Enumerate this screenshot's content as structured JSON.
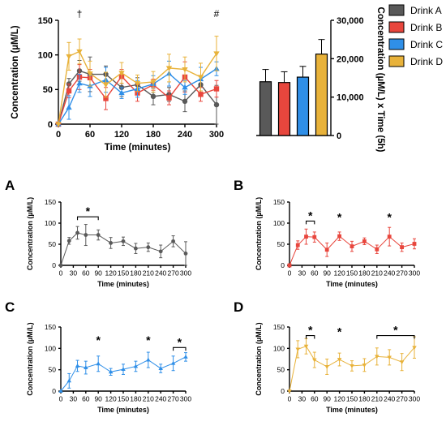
{
  "chart_data": [
    {
      "id": "top",
      "type": "line",
      "ylabel": "Concentration (µM/L)",
      "xlabel": "Time (minutes)",
      "xlim": [
        0,
        300
      ],
      "ylim": [
        0,
        150
      ],
      "xticks": [
        0,
        60,
        120,
        180,
        240,
        300
      ],
      "yticks": [
        0,
        50,
        100,
        150
      ],
      "x": [
        0,
        20,
        40,
        60,
        90,
        120,
        150,
        180,
        210,
        240,
        270,
        300
      ],
      "annotations": [
        {
          "text": "†",
          "x": 40
        },
        {
          "text": "#",
          "x": 300
        }
      ],
      "series": [
        {
          "name": "Drink A",
          "color": "#595959",
          "marker": "circle",
          "values": [
            0,
            58,
            77,
            72,
            72,
            53,
            57,
            40,
            43,
            33,
            57,
            28
          ],
          "err": [
            0,
            8,
            15,
            25,
            12,
            13,
            10,
            12,
            10,
            15,
            13,
            28
          ]
        },
        {
          "name": "Drink B",
          "color": "#e8463d",
          "marker": "square",
          "values": [
            0,
            48,
            68,
            67,
            37,
            69,
            45,
            57,
            38,
            68,
            43,
            51
          ],
          "err": [
            0,
            10,
            18,
            12,
            16,
            10,
            12,
            8,
            10,
            22,
            10,
            12
          ]
        },
        {
          "name": "Drink C",
          "color": "#2f8fe8",
          "marker": "triangle",
          "values": [
            0,
            24,
            59,
            55,
            64,
            45,
            51,
            58,
            73,
            53,
            65,
            80
          ],
          "err": [
            0,
            17,
            13,
            15,
            18,
            8,
            12,
            12,
            18,
            10,
            17,
            10
          ]
        },
        {
          "name": "Drink D",
          "color": "#e8b23a",
          "marker": "triangle-down",
          "values": [
            0,
            98,
            105,
            73,
            57,
            74,
            59,
            61,
            81,
            79,
            68,
            102
          ],
          "err": [
            0,
            20,
            18,
            18,
            18,
            15,
            12,
            15,
            20,
            18,
            20,
            25
          ]
        }
      ]
    },
    {
      "id": "auc",
      "type": "bar",
      "ylabel": "Concentration (µM/L) x Time (5h)",
      "ylim": [
        0,
        30000
      ],
      "yticks": [
        0,
        10000,
        20000,
        30000
      ],
      "ytick_labels": [
        "0",
        "10,000",
        "20,000",
        "30,000"
      ],
      "categories": [
        "Drink A",
        "Drink B",
        "Drink C",
        "Drink D"
      ],
      "values": [
        14000,
        13800,
        15200,
        21200
      ],
      "err": [
        3200,
        2800,
        2800,
        3800
      ],
      "colors": [
        "#595959",
        "#e8463d",
        "#2f8fe8",
        "#e8b23a"
      ],
      "legend": {
        "placement": "top-left",
        "entries": [
          "Drink A",
          "Drink B",
          "Drink C",
          "Drink D"
        ],
        "colors": [
          "#595959",
          "#e8463d",
          "#2f8fe8",
          "#e8b23a"
        ]
      }
    },
    {
      "id": "A",
      "type": "line",
      "panel_label": "A",
      "ylabel": "Concentration (µM/L)",
      "xlabel": "Time (minutes)",
      "xlim": [
        0,
        300
      ],
      "ylim": [
        0,
        150
      ],
      "xticks": [
        0,
        30,
        60,
        90,
        120,
        150,
        180,
        210,
        240,
        270,
        300
      ],
      "yticks": [
        0,
        50,
        100,
        150
      ],
      "x": [
        0,
        20,
        40,
        60,
        90,
        120,
        150,
        180,
        210,
        240,
        270,
        300
      ],
      "series": [
        {
          "color": "#595959",
          "marker": "circle",
          "values": [
            0,
            58,
            77,
            72,
            72,
            53,
            57,
            40,
            43,
            33,
            57,
            28
          ],
          "err": [
            0,
            8,
            15,
            25,
            12,
            13,
            10,
            12,
            10,
            15,
            13,
            28
          ]
        }
      ],
      "significance": [
        {
          "text": "*",
          "x1": 40,
          "x2": 90,
          "y": 115
        }
      ]
    },
    {
      "id": "B",
      "type": "line",
      "panel_label": "B",
      "ylabel": "Concentration (µM/L)",
      "xlabel": "Time (minutes)",
      "xlim": [
        0,
        300
      ],
      "ylim": [
        0,
        150
      ],
      "xticks": [
        0,
        30,
        60,
        90,
        120,
        150,
        180,
        210,
        240,
        270,
        300
      ],
      "yticks": [
        0,
        50,
        100,
        150
      ],
      "x": [
        0,
        20,
        40,
        60,
        90,
        120,
        150,
        180,
        210,
        240,
        270,
        300
      ],
      "series": [
        {
          "color": "#e8463d",
          "marker": "square",
          "values": [
            0,
            48,
            68,
            67,
            37,
            69,
            45,
            57,
            38,
            68,
            43,
            51
          ],
          "err": [
            0,
            10,
            18,
            12,
            16,
            10,
            12,
            8,
            10,
            22,
            10,
            12
          ]
        }
      ],
      "significance": [
        {
          "text": "*",
          "x1": 40,
          "x2": 60,
          "y": 105
        },
        {
          "text": "*",
          "x": 120,
          "y": 105
        },
        {
          "text": "*",
          "x": 240,
          "y": 105
        }
      ]
    },
    {
      "id": "C",
      "type": "line",
      "panel_label": "C",
      "ylabel": "Concentration (µM/L)",
      "xlabel": "Time (minutes)",
      "xlim": [
        0,
        300
      ],
      "ylim": [
        0,
        150
      ],
      "xticks": [
        0,
        30,
        60,
        90,
        120,
        150,
        180,
        210,
        240,
        270,
        300
      ],
      "yticks": [
        0,
        50,
        100,
        150
      ],
      "x": [
        0,
        20,
        40,
        60,
        90,
        120,
        150,
        180,
        210,
        240,
        270,
        300
      ],
      "series": [
        {
          "color": "#2f8fe8",
          "marker": "triangle",
          "values": [
            0,
            24,
            59,
            55,
            64,
            45,
            51,
            58,
            73,
            53,
            65,
            80
          ],
          "err": [
            0,
            17,
            13,
            15,
            18,
            8,
            12,
            12,
            18,
            10,
            17,
            10
          ]
        }
      ],
      "significance": [
        {
          "text": "*",
          "x": 90,
          "y": 110
        },
        {
          "text": "*",
          "x": 210,
          "y": 110
        },
        {
          "text": "*",
          "x1": 270,
          "x2": 300,
          "y": 102
        }
      ]
    },
    {
      "id": "D",
      "type": "line",
      "panel_label": "D",
      "ylabel": "Concentration (µM/L)",
      "xlabel": "Time (minutes)",
      "xlim": [
        0,
        300
      ],
      "ylim": [
        0,
        150
      ],
      "xticks": [
        0,
        30,
        60,
        90,
        120,
        150,
        180,
        210,
        240,
        270,
        300
      ],
      "yticks": [
        0,
        50,
        100,
        150
      ],
      "x": [
        0,
        20,
        40,
        60,
        90,
        120,
        150,
        180,
        210,
        240,
        270,
        300
      ],
      "series": [
        {
          "color": "#e8b23a",
          "marker": "triangle-down",
          "values": [
            0,
            98,
            105,
            73,
            57,
            74,
            59,
            61,
            81,
            79,
            68,
            102
          ],
          "err": [
            0,
            20,
            18,
            18,
            18,
            15,
            12,
            15,
            20,
            18,
            20,
            25
          ]
        }
      ],
      "significance": [
        {
          "text": "*",
          "x1": 40,
          "x2": 60,
          "y": 130
        },
        {
          "text": "*",
          "x": 120,
          "y": 130
        },
        {
          "text": "*",
          "x1": 210,
          "x2": 300,
          "y": 130
        }
      ]
    }
  ]
}
